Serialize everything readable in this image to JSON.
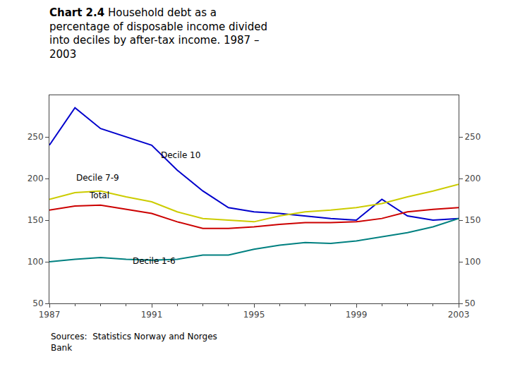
{
  "chart_data": {
    "type": "line",
    "title": "Chart 2.4",
    "subtitle": "Household debt as a\npercentage of disposable income divided\ninto deciles by after-tax income. 1987 –\n2003",
    "source": "Sources:  Statistics Norway and Norges\nBank",
    "x": [
      1987,
      1988,
      1989,
      1990,
      1991,
      1992,
      1993,
      1994,
      1995,
      1996,
      1997,
      1998,
      1999,
      2000,
      2001,
      2002,
      2003
    ],
    "series": [
      {
        "name": "Decile 10",
        "color": "#0000CC",
        "values": [
          240,
          285,
          260,
          250,
          240,
          210,
          185,
          165,
          160,
          158,
          155,
          152,
          150,
          175,
          155,
          150,
          152
        ]
      },
      {
        "name": "Decile 7-9",
        "color": "#CCCC00",
        "values": [
          175,
          183,
          185,
          178,
          172,
          160,
          152,
          150,
          148,
          155,
          160,
          162,
          165,
          170,
          178,
          185,
          193
        ]
      },
      {
        "name": "Total",
        "color": "#CC0000",
        "values": [
          162,
          167,
          168,
          163,
          158,
          148,
          140,
          140,
          142,
          145,
          147,
          147,
          148,
          152,
          160,
          163,
          165
        ]
      },
      {
        "name": "Decile 1-6",
        "color": "#008080",
        "values": [
          100,
          103,
          105,
          103,
          102,
          103,
          108,
          108,
          115,
          120,
          123,
          122,
          125,
          130,
          135,
          142,
          152
        ]
      }
    ],
    "xlim": [
      1987,
      2003
    ],
    "xticks": [
      1987,
      1991,
      1995,
      1999,
      2003
    ],
    "minor_xticks": [
      1988,
      1989,
      1990,
      1992,
      1993,
      1994,
      1996,
      1997,
      1998,
      2000,
      2001,
      2002
    ],
    "ylim": [
      50,
      300
    ],
    "yticks": [
      50,
      100,
      150,
      200,
      250
    ],
    "y2lim": [
      50,
      300
    ],
    "y2ticks": [
      50,
      100,
      150,
      200,
      250
    ],
    "annotations": [
      {
        "text": "Decile 10",
        "x": 1991.3,
        "y": 220
      },
      {
        "text": "Decile 7-9",
        "x": 1988.0,
        "y": 193
      },
      {
        "text": "Total",
        "x": 1988.5,
        "y": 172
      },
      {
        "text": "Decile 1-6",
        "x": 1990.2,
        "y": 93
      }
    ],
    "grid": false
  }
}
